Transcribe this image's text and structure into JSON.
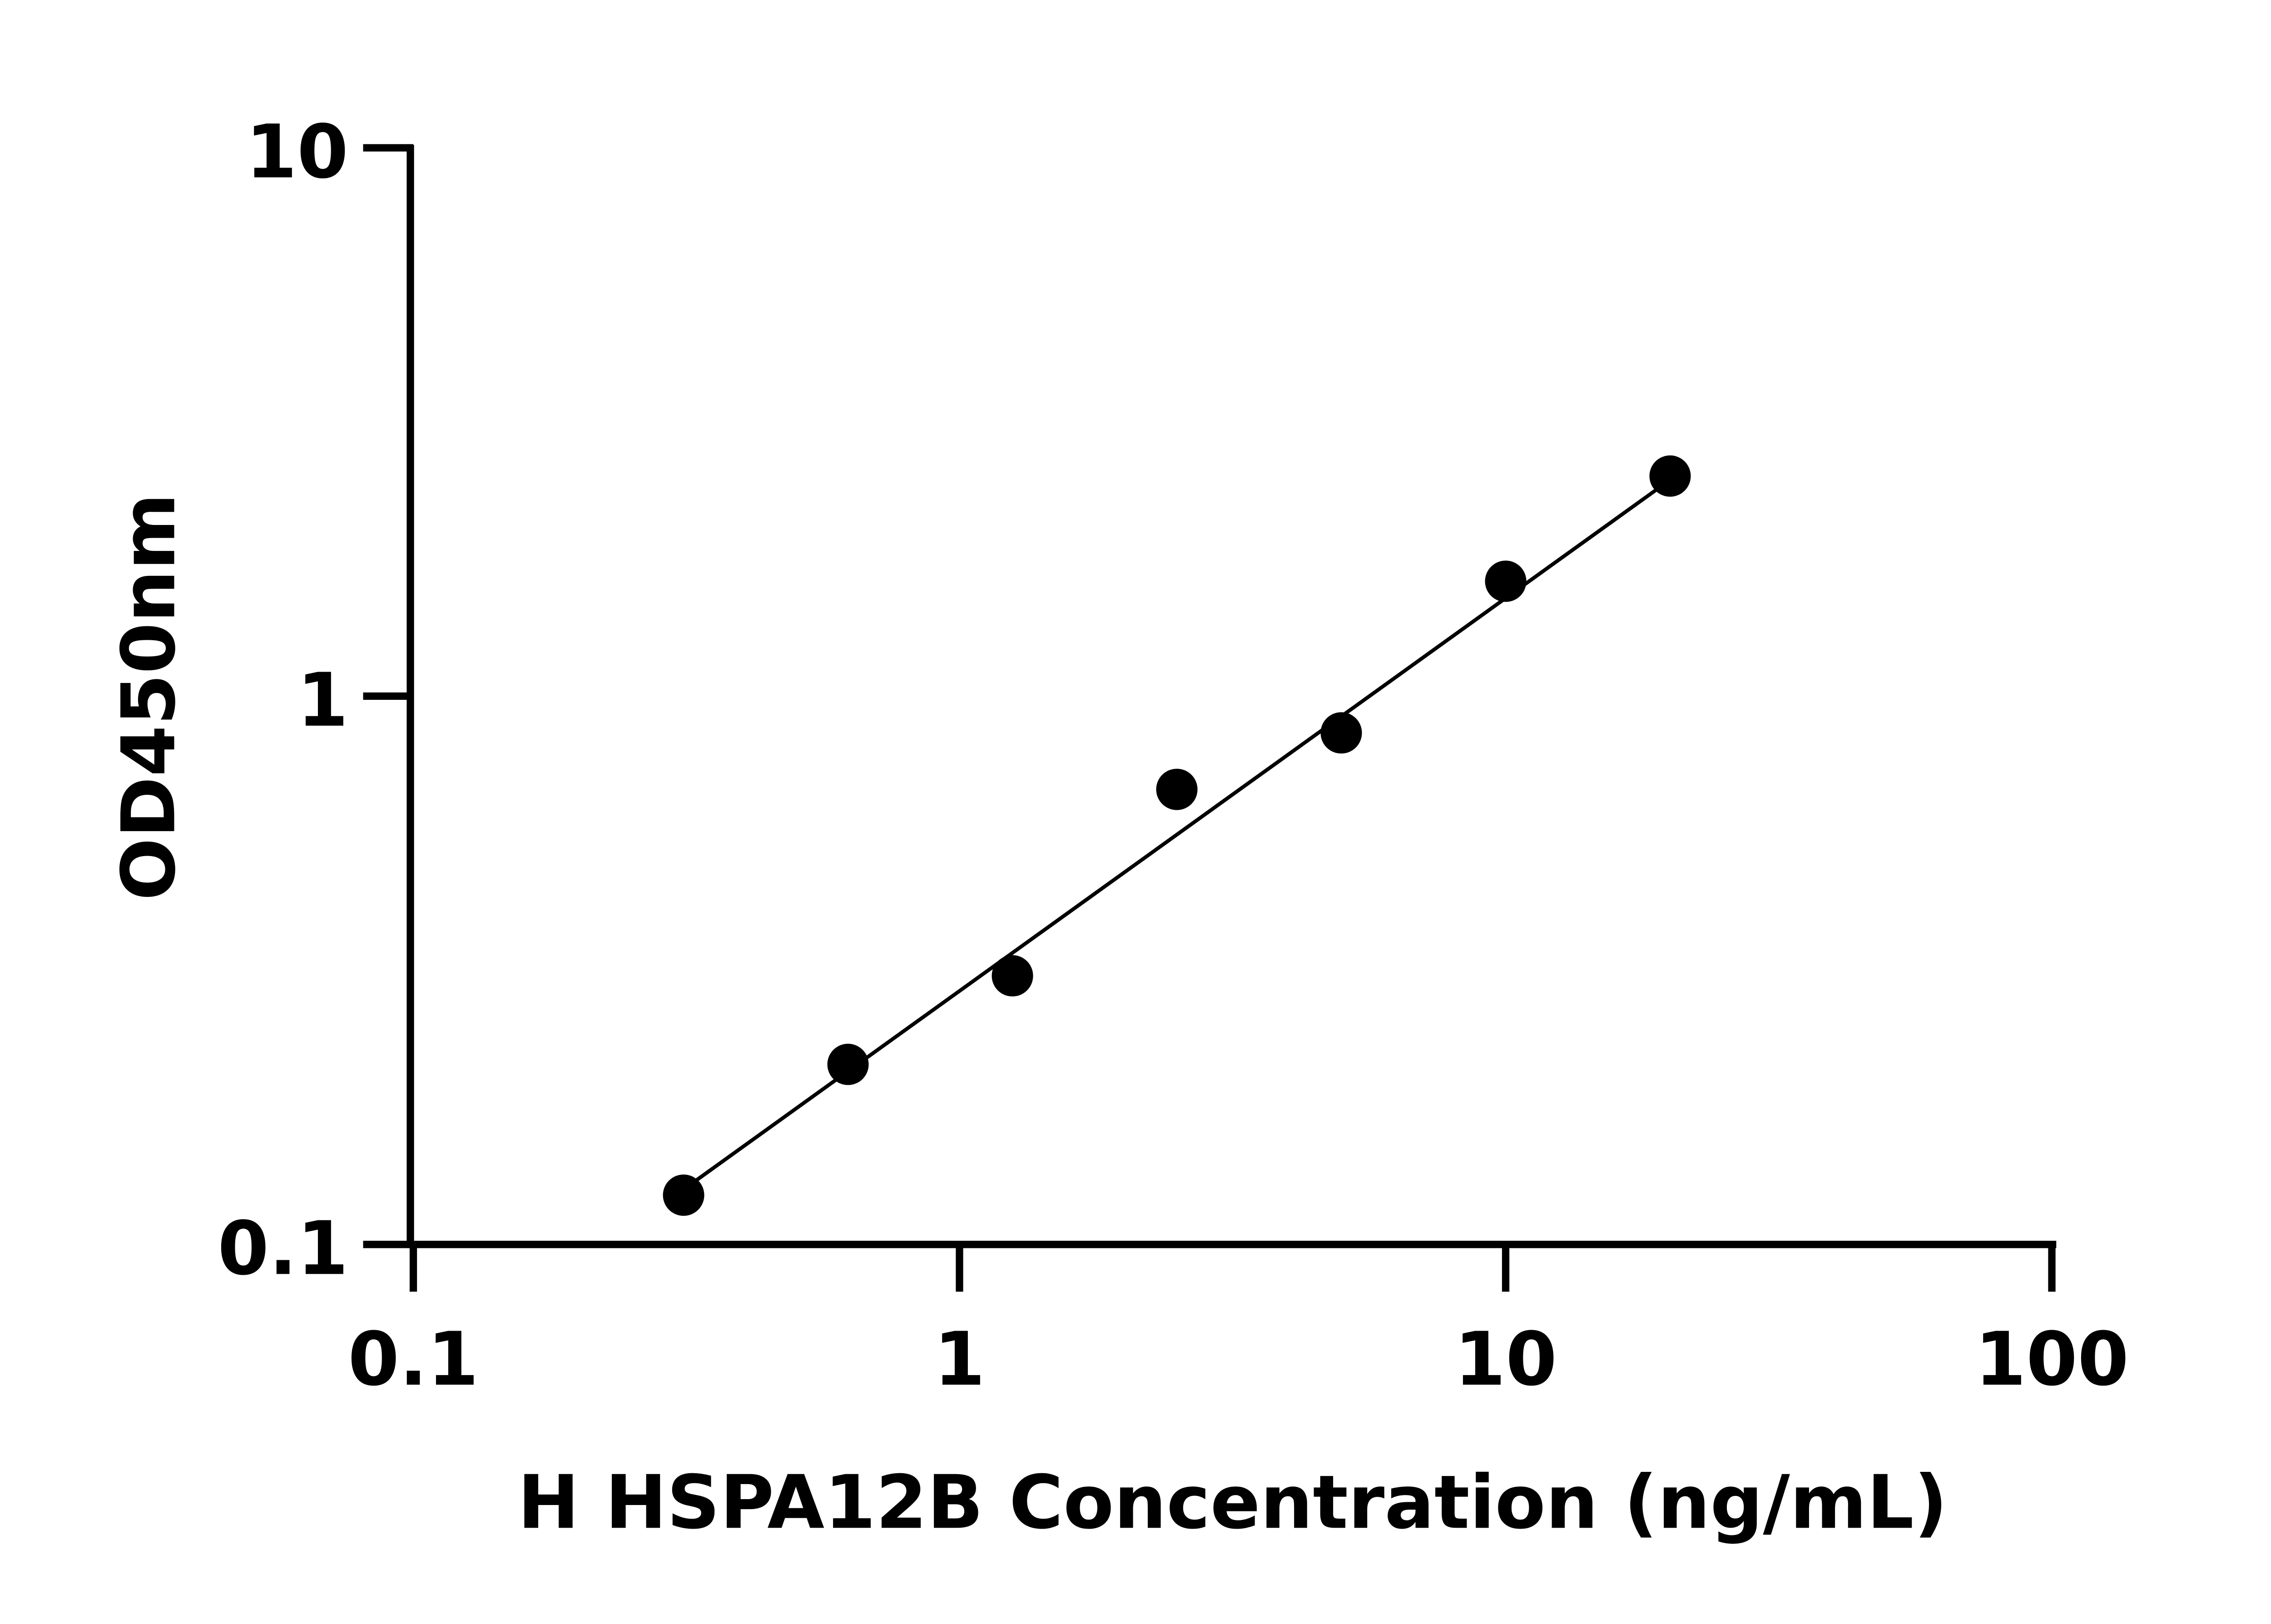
{
  "chart_data": {
    "type": "scatter",
    "title": "",
    "xlabel": "H HSPA12B Concentration (ng/mL)",
    "ylabel": "OD450nm",
    "xscale": "log",
    "yscale": "log",
    "xlim": [
      0.1,
      100
    ],
    "ylim": [
      0.1,
      10
    ],
    "xticks": [
      "0.1",
      "1",
      "10",
      "100"
    ],
    "yticks": [
      "0.1",
      "1",
      "10"
    ],
    "grid": false,
    "legend": "none",
    "marker_color": "#000000",
    "series": [
      {
        "x": [
          0.3125,
          0.625,
          1.25,
          2.5,
          5,
          10,
          20
        ],
        "y": [
          0.123,
          0.213,
          0.309,
          0.676,
          0.857,
          1.62,
          2.52
        ]
      }
    ],
    "fit_line": {
      "type": "power",
      "x_range": [
        0.3125,
        20
      ],
      "y_at_start": 0.126,
      "y_at_end": 2.48
    }
  }
}
